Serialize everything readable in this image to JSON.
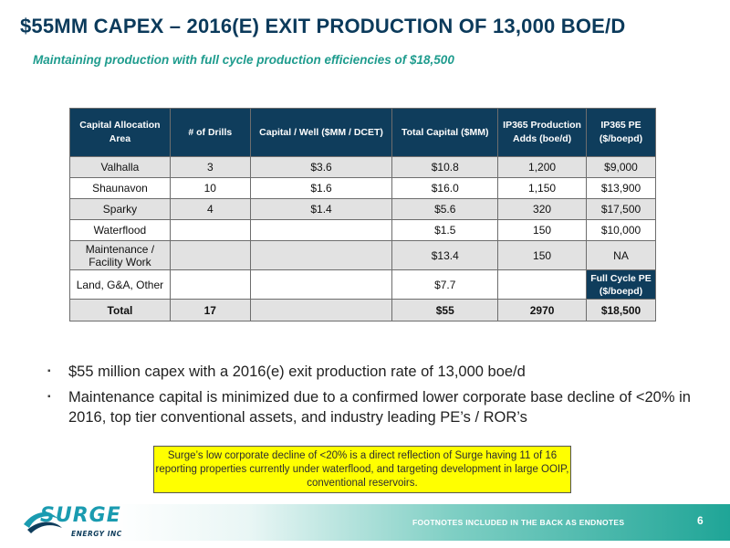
{
  "slide": {
    "title": "$55MM CAPEX – 2016(E) EXIT PRODUCTION OF 13,000 BOE/D",
    "subtitle": "Maintaining production with full cycle production efficiencies of $18,500"
  },
  "table": {
    "headers": [
      "Capital Allocation Area",
      "# of Drills",
      "Capital / Well ($MM / DCET)",
      "Total Capital ($MM)",
      "IP365 Production Adds (boe/d)",
      "IP365 PE ($/boepd)"
    ],
    "rows": [
      [
        "Valhalla",
        "3",
        "$3.6",
        "$10.8",
        "1,200",
        "$9,000"
      ],
      [
        "Shaunavon",
        "10",
        "$1.6",
        "$16.0",
        "1,150",
        "$13,900"
      ],
      [
        "Sparky",
        "4",
        "$1.4",
        "$5.6",
        "320",
        "$17,500"
      ],
      [
        "Waterflood",
        "",
        "",
        "$1.5",
        "150",
        "$10,000"
      ],
      [
        "Maintenance / Facility Work",
        "",
        "",
        "$13.4",
        "150",
        "NA"
      ],
      [
        "Land, G&A, Other",
        "",
        "",
        "$7.7",
        "",
        "Full Cycle PE ($/boepd)"
      ]
    ],
    "total": [
      "Total",
      "17",
      "",
      "$55",
      "2970",
      "$18,500"
    ]
  },
  "bullets": [
    "$55 million capex with a 2016(e) exit production rate of 13,000 boe/d",
    "Maintenance capital is minimized due to a confirmed lower corporate base decline of <20% in 2016, top tier conventional assets, and industry leading PE’s / ROR’s"
  ],
  "bullet_marker": "▪",
  "callout": "Surge’s low corporate decline of <20% is a direct reflection of Surge having 11 of 16 reporting properties currently under waterflood, and targeting development in large OOIP, conventional reservoirs.",
  "footer": {
    "footnote": "FOOTNOTES INCLUDED IN THE BACK AS ENDNOTES",
    "page_number": "6"
  },
  "logo": {
    "word": "SURGE",
    "sub": "ENERGY INC"
  },
  "colors": {
    "title": "#0b3a5b",
    "subtitle": "#1f9c8e",
    "table_header": "#0f3d5c",
    "row_shade": "#e2e2e2",
    "callout_bg": "#ffff00",
    "footer_teal": "#1fa597"
  }
}
